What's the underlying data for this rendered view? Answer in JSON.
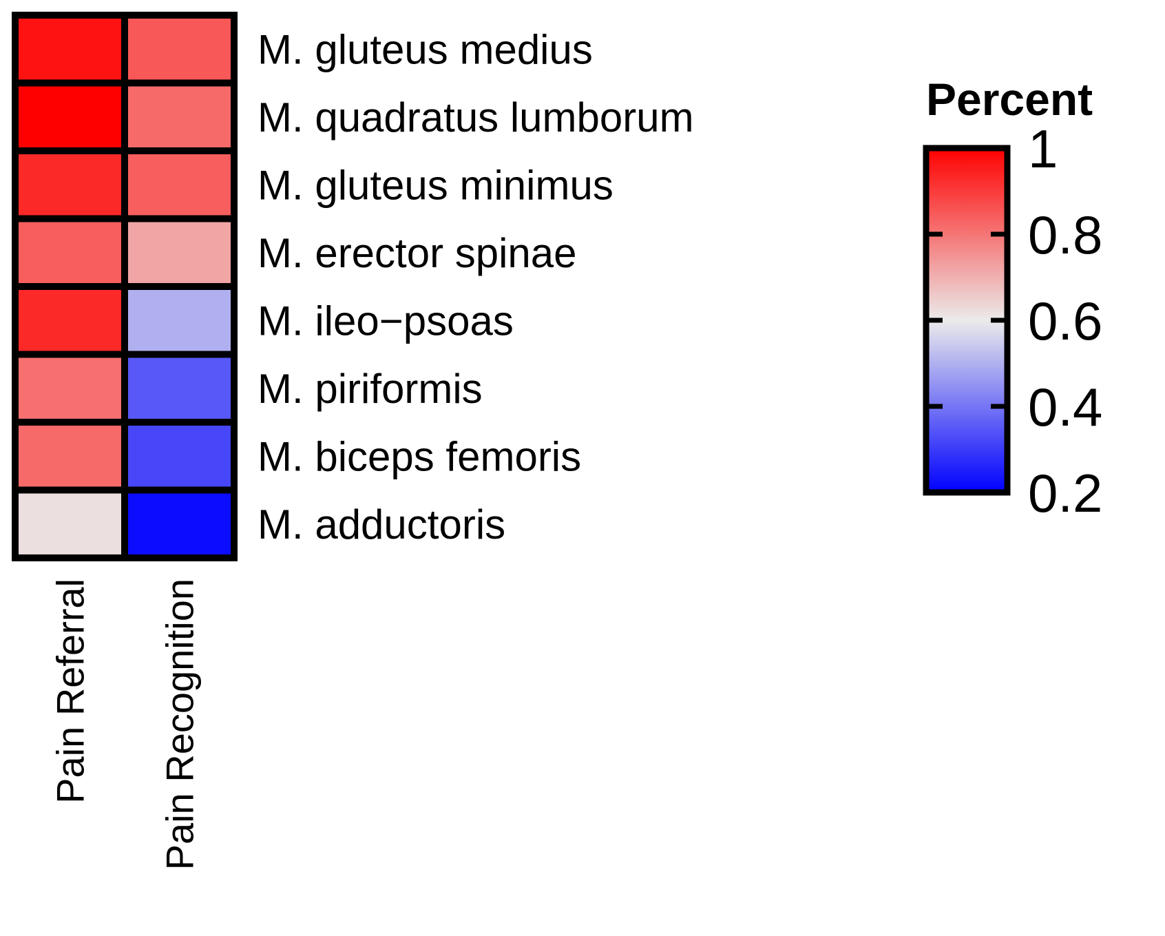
{
  "chart_data": {
    "type": "heatmap",
    "columns": [
      "Pain Referral",
      "Pain Recognition"
    ],
    "rows": [
      "M. gluteus medius",
      "M. quadratus lumborum",
      "M. gluteus minimus",
      "M. erector spinae",
      "M. ileo−psoas",
      "M. piriformis",
      "M. biceps femoris",
      "M. adductoris"
    ],
    "values": [
      [
        0.97,
        0.85
      ],
      [
        1.0,
        0.82
      ],
      [
        0.93,
        0.84
      ],
      [
        0.84,
        0.72
      ],
      [
        0.93,
        0.5
      ],
      [
        0.81,
        0.35
      ],
      [
        0.82,
        0.32
      ],
      [
        0.62,
        0.22
      ]
    ],
    "legend": {
      "title": "Percent",
      "min": 0.2,
      "max": 1.0,
      "ticks": [
        "1",
        "0.8",
        "0.6",
        "0.4",
        "0.2"
      ],
      "tick_values": [
        1.0,
        0.8,
        0.6,
        0.4,
        0.2
      ],
      "placement": "right"
    },
    "colors": {
      "low": "#0000ff",
      "mid": "#ebebeb",
      "high": "#ff0000",
      "mid_value": 0.6,
      "border": "#000000"
    }
  }
}
